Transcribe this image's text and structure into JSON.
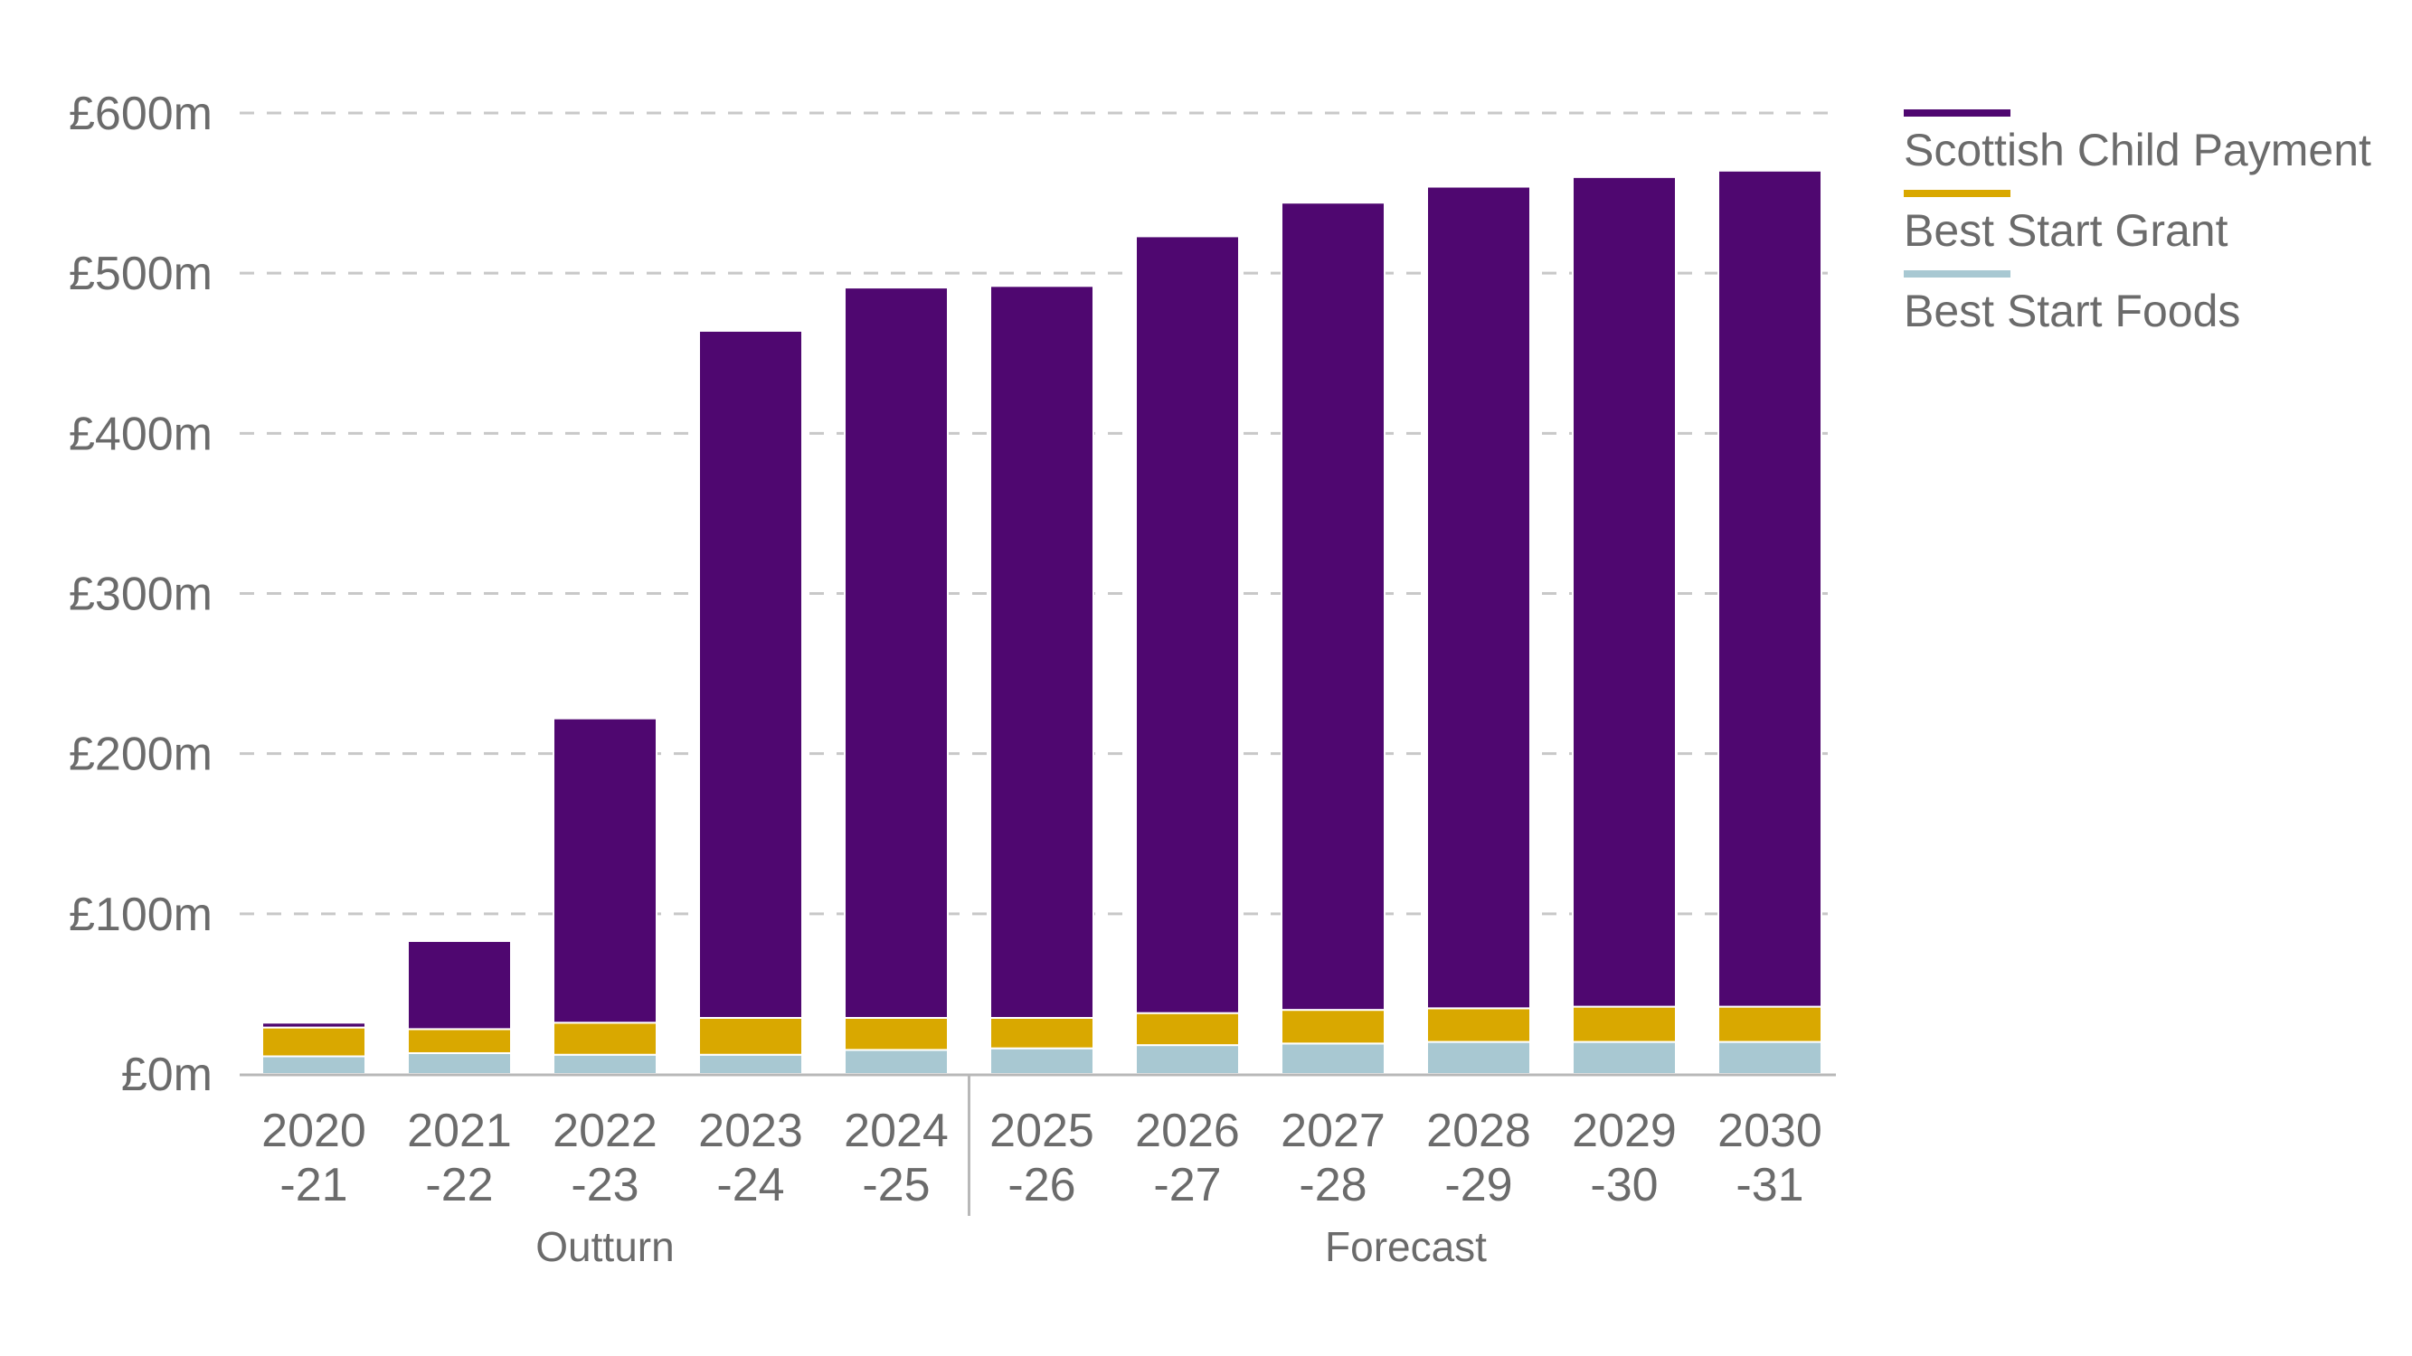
{
  "chart_data": {
    "type": "bar",
    "stacked": true,
    "categories": [
      [
        "2020",
        "-21"
      ],
      [
        "2021",
        "-22"
      ],
      [
        "2022",
        "-23"
      ],
      [
        "2023",
        "-24"
      ],
      [
        "2024",
        "-25"
      ],
      [
        "2025",
        "-26"
      ],
      [
        "2026",
        "-27"
      ],
      [
        "2027",
        "-28"
      ],
      [
        "2028",
        "-29"
      ],
      [
        "2029",
        "-30"
      ],
      [
        "2030",
        "-31"
      ]
    ],
    "series": [
      {
        "name": "Best Start Foods",
        "color": "#a8c8d2",
        "values": [
          11,
          13,
          12,
          12,
          15,
          16,
          18,
          19,
          20,
          20,
          20
        ]
      },
      {
        "name": "Best Start Grant",
        "color": "#d9a800",
        "values": [
          18,
          15,
          20,
          23,
          20,
          19,
          20,
          21,
          21,
          22,
          22
        ]
      },
      {
        "name": "Scottish Child Payment",
        "color": "#4f0770",
        "values": [
          3,
          55,
          190,
          429,
          456,
          457,
          485,
          504,
          513,
          518,
          522
        ]
      }
    ],
    "yticks": [
      "£0m",
      "£100m",
      "£200m",
      "£300m",
      "£400m",
      "£500m",
      "£600m"
    ],
    "ylim": [
      0,
      600
    ],
    "ytick_step": 100,
    "grid": true,
    "groups": [
      {
        "label": "Outturn",
        "start": 0,
        "end": 4
      },
      {
        "label": "Forecast",
        "start": 5,
        "end": 10
      }
    ],
    "legend": {
      "placement": "top-right",
      "entries": [
        {
          "label": "Scottish Child Payment",
          "color": "#4f0770"
        },
        {
          "label": "Best Start Grant",
          "color": "#d9a800"
        },
        {
          "label": "Best Start Foods",
          "color": "#a8c8d2"
        }
      ]
    }
  }
}
